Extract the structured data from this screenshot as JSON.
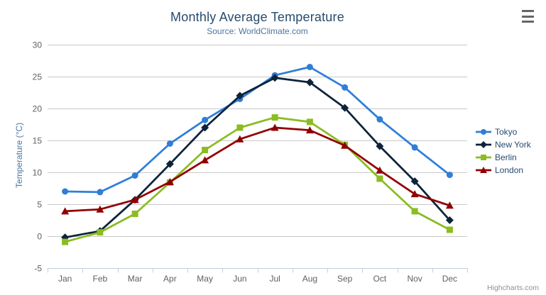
{
  "header": {
    "title": "Monthly Average Temperature",
    "subtitle": "Source: WorldClimate.com"
  },
  "credits": {
    "label": "Highcharts.com"
  },
  "export_menu": {
    "icon": "hamburger-icon"
  },
  "chart_data": {
    "type": "line",
    "title": "Monthly Average Temperature",
    "subtitle": "Source: WorldClimate.com",
    "xlabel": "",
    "ylabel": "Temperature (°C)",
    "categories": [
      "Jan",
      "Feb",
      "Mar",
      "Apr",
      "May",
      "Jun",
      "Jul",
      "Aug",
      "Sep",
      "Oct",
      "Nov",
      "Dec"
    ],
    "ylim": [
      -5,
      30
    ],
    "ytick_interval": 5,
    "ytick_labels": [
      "-5",
      "0",
      "5",
      "10",
      "15",
      "20",
      "25",
      "30"
    ],
    "grid": true,
    "legend_position": "right",
    "colors": {
      "grid_line": "#c8c8c8",
      "axis_line": "#c0d0e0",
      "tick_label": "#606060",
      "title_text": "#274b6d",
      "subtitle_text": "#4d759e"
    },
    "series": [
      {
        "name": "Tokyo",
        "color": "#2f7ed8",
        "marker": "circle",
        "values": [
          7.0,
          6.9,
          9.5,
          14.5,
          18.2,
          21.5,
          25.2,
          26.5,
          23.3,
          18.3,
          13.9,
          9.6
        ]
      },
      {
        "name": "New York",
        "color": "#0d233a",
        "marker": "diamond",
        "values": [
          -0.2,
          0.8,
          5.7,
          11.3,
          17.0,
          22.0,
          24.8,
          24.1,
          20.1,
          14.1,
          8.6,
          2.5
        ]
      },
      {
        "name": "Berlin",
        "color": "#8bbc21",
        "marker": "square",
        "values": [
          -0.9,
          0.6,
          3.5,
          8.4,
          13.5,
          17.0,
          18.6,
          17.9,
          14.3,
          9.0,
          3.9,
          1.0
        ]
      },
      {
        "name": "London",
        "color": "#910000",
        "marker": "triangle",
        "values": [
          3.9,
          4.2,
          5.7,
          8.5,
          11.9,
          15.2,
          17.0,
          16.6,
          14.2,
          10.3,
          6.6,
          4.8
        ]
      }
    ]
  }
}
